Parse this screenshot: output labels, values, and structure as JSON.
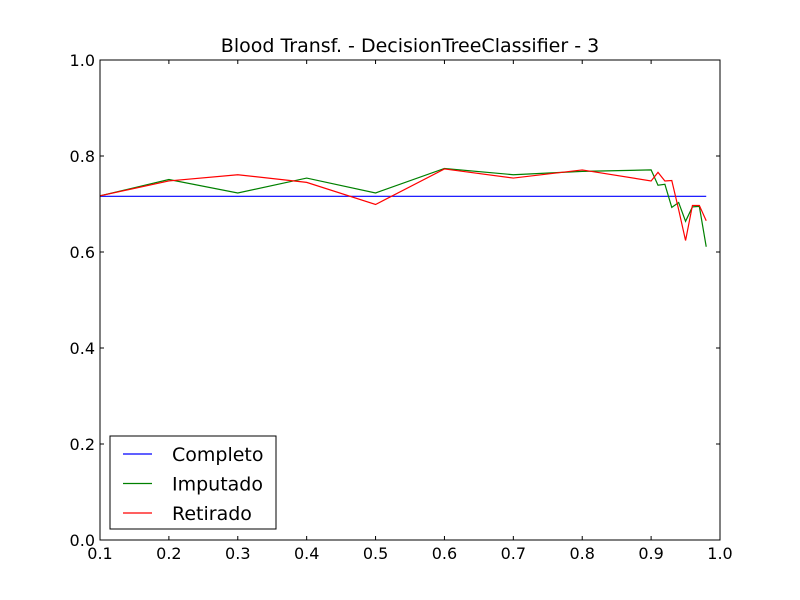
{
  "chart_data": {
    "type": "line",
    "title": "Blood Transf. - DecisionTreeClassifier - 3",
    "xlabel": "",
    "ylabel": "",
    "xlim": [
      0.1,
      1.0
    ],
    "ylim": [
      0.0,
      1.0
    ],
    "xticks": [
      "0.1",
      "0.2",
      "0.3",
      "0.4",
      "0.5",
      "0.6",
      "0.7",
      "0.8",
      "0.9",
      "1.0"
    ],
    "yticks": [
      "0.0",
      "0.2",
      "0.4",
      "0.6",
      "0.8",
      "1.0"
    ],
    "grid": false,
    "legend_position": "lower-left",
    "series": [
      {
        "name": "Completo",
        "color": "#0000ff",
        "x": [
          0.1,
          0.98
        ],
        "y": [
          0.716,
          0.716
        ]
      },
      {
        "name": "Imputado",
        "color": "#008000",
        "x": [
          0.1,
          0.2,
          0.3,
          0.4,
          0.5,
          0.6,
          0.7,
          0.8,
          0.9,
          0.91,
          0.92,
          0.93,
          0.94,
          0.95,
          0.96,
          0.97,
          0.98
        ],
        "y": [
          0.717,
          0.751,
          0.723,
          0.754,
          0.723,
          0.774,
          0.761,
          0.768,
          0.771,
          0.739,
          0.741,
          0.693,
          0.703,
          0.664,
          0.694,
          0.695,
          0.611
        ]
      },
      {
        "name": "Retirado",
        "color": "#ff0000",
        "x": [
          0.1,
          0.2,
          0.3,
          0.4,
          0.5,
          0.6,
          0.7,
          0.8,
          0.9,
          0.91,
          0.92,
          0.93,
          0.94,
          0.95,
          0.96,
          0.97,
          0.98
        ],
        "y": [
          0.717,
          0.748,
          0.761,
          0.745,
          0.699,
          0.773,
          0.754,
          0.771,
          0.748,
          0.766,
          0.748,
          0.749,
          0.688,
          0.624,
          0.697,
          0.697,
          0.665
        ]
      }
    ]
  }
}
